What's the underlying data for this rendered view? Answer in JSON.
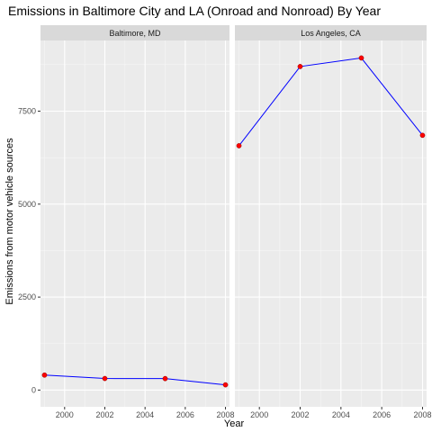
{
  "chart_data": {
    "type": "line",
    "title": "Emissions in Baltimore City and LA (Onroad and Nonroad) By Year",
    "xlabel": "Year",
    "ylabel": "Emissions from motor vehicle sources",
    "x_ticks": [
      2000,
      2002,
      2004,
      2006,
      2008
    ],
    "y_ticks": [
      0,
      2500,
      5000,
      7500
    ],
    "xlim": [
      1998.8,
      2008.2
    ],
    "ylim": [
      -450,
      9400
    ],
    "grid": true,
    "legend": "none",
    "line_color": "#0000ff",
    "point_color": "#ff0000",
    "panel_background": "#ebebeb",
    "strip_background": "#d9d9d9",
    "facets": [
      {
        "label": "Baltimore, MD",
        "x": [
          1999,
          2002,
          2005,
          2008
        ],
        "y": [
          403,
          311,
          309,
          141
        ]
      },
      {
        "label": "Los Angeles, CA",
        "x": [
          1999,
          2002,
          2005,
          2008
        ],
        "y": [
          6570,
          8700,
          8930,
          6850
        ]
      }
    ]
  }
}
